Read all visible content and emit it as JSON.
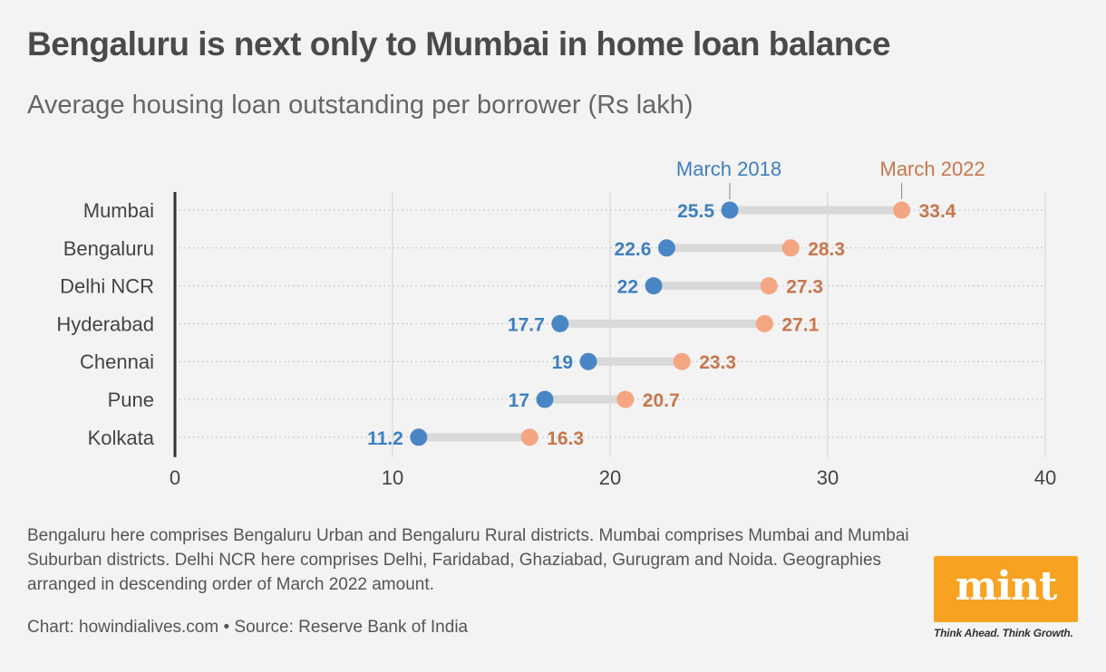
{
  "title": "Bengaluru is next only to Mumbai in home loan balance",
  "subtitle": "Average housing loan outstanding per borrower (Rs lakh)",
  "chart_data": {
    "type": "dumbbell",
    "categories": [
      "Mumbai",
      "Bengaluru",
      "Delhi NCR",
      "Hyderabad",
      "Chennai",
      "Pune",
      "Kolkata"
    ],
    "series": [
      {
        "name": "March 2018",
        "color": "#4a86c5",
        "values": [
          25.5,
          22.6,
          22,
          17.7,
          19,
          17,
          11.2
        ]
      },
      {
        "name": "March 2022",
        "color": "#f4a582",
        "values": [
          33.4,
          28.3,
          27.3,
          27.1,
          23.3,
          20.7,
          16.3
        ]
      }
    ],
    "label_colors": {
      "March 2018": "#3d7fc0",
      "March 2022": "#c8764c"
    },
    "xlim": [
      0,
      40
    ],
    "xticks": [
      "0",
      "10",
      "20",
      "30",
      "40"
    ],
    "grid": true,
    "legend": "inline-top"
  },
  "note": "Bengaluru here comprises Bengaluru Urban and Bengaluru Rural districts. Mumbai comprises Mumbai and Mumbai Suburban districts. Delhi NCR here comprises Delhi, Faridabad, Ghaziabad, Gurugram and Noida. Geographies arranged in descending order of March 2022 amount.",
  "source": "Chart: howindialives.com • Source: Reserve Bank of India",
  "logo": {
    "word": "mint",
    "tagline": "Think Ahead. Think Growth.",
    "color": "#f7a221"
  }
}
